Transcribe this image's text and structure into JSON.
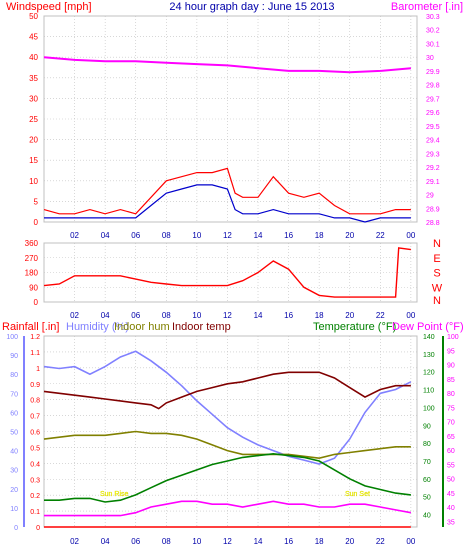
{
  "chart_data": [
    {
      "type": "line",
      "title": "24 hour graph day : June 15 2013",
      "left_axis_label": "Windspeed [mph]",
      "right_axis_label": "Barometer [.in]",
      "x_ticks": [
        "02",
        "04",
        "06",
        "08",
        "10",
        "12",
        "14",
        "16",
        "18",
        "20",
        "22",
        "00"
      ],
      "x_range": [
        0,
        24.4
      ],
      "left_ylim": [
        0,
        50
      ],
      "left_ticks": [
        0,
        5,
        10,
        15,
        20,
        25,
        30,
        35,
        40,
        45,
        50
      ],
      "right_ylim": [
        28.8,
        30.3
      ],
      "right_ticks": [
        "28.8",
        "28.9",
        "29",
        "29.1",
        "29.2",
        "29.3",
        "29.4",
        "29.5",
        "29.6",
        "29.7",
        "29.8",
        "29.9",
        "30",
        "30.1",
        "30.2",
        "30.3"
      ],
      "grid": true,
      "colors": {
        "windspeed": "#ff0000",
        "avg_wind": "#0000cc",
        "barometer": "#ff00ff",
        "grid": "#c0c0c0",
        "frame": "#c0c0c0"
      },
      "series": [
        {
          "axis": "right",
          "color": "#ff00ff",
          "x": [
            0,
            2,
            4,
            6,
            8,
            10,
            12,
            14,
            16,
            18,
            20,
            22,
            24
          ],
          "values": [
            30.0,
            29.98,
            29.97,
            29.97,
            29.96,
            29.95,
            29.94,
            29.92,
            29.9,
            29.9,
            29.89,
            29.9,
            29.92
          ]
        },
        {
          "axis": "left",
          "color": "#ff0000",
          "x": [
            0,
            1,
            2,
            3,
            4,
            5,
            6,
            7,
            8,
            9,
            10,
            11,
            12,
            12.5,
            13,
            14,
            15,
            16,
            17,
            18,
            19,
            20,
            21,
            22,
            23,
            24
          ],
          "values": [
            3,
            2,
            2,
            3,
            2,
            3,
            2,
            6,
            10,
            11,
            12,
            12,
            13,
            7,
            6,
            6,
            11,
            7,
            6,
            7,
            4,
            2,
            2,
            2,
            3,
            3
          ]
        },
        {
          "axis": "left",
          "color": "#0000cc",
          "x": [
            0,
            1,
            2,
            3,
            4,
            5,
            6,
            7,
            8,
            9,
            10,
            11,
            12,
            12.5,
            13,
            14,
            15,
            16,
            17,
            18,
            19,
            20,
            21,
            22,
            23,
            24
          ],
          "values": [
            1,
            1,
            1,
            1,
            1,
            1,
            1,
            4,
            7,
            8,
            9,
            9,
            8,
            3,
            2,
            2,
            3,
            2,
            2,
            2,
            1,
            1,
            0,
            1,
            1,
            1
          ]
        }
      ]
    },
    {
      "type": "line",
      "right_axis_label": "N W S E N",
      "x_ticks": [
        "02",
        "04",
        "06",
        "08",
        "10",
        "12",
        "14",
        "16",
        "18",
        "20",
        "22",
        "00"
      ],
      "x_range": [
        0,
        24.4
      ],
      "ylim": [
        0,
        360
      ],
      "y_ticks": [
        0,
        90,
        180,
        270,
        360
      ],
      "grid": true,
      "series": [
        {
          "color": "#ff0000",
          "x": [
            0,
            1,
            2,
            3,
            4,
            5,
            6,
            7,
            8,
            9,
            10,
            11,
            12,
            13,
            14,
            15,
            16,
            17,
            18,
            19,
            20,
            21,
            22,
            23,
            23.2,
            24
          ],
          "values": [
            100,
            110,
            160,
            160,
            160,
            160,
            140,
            120,
            110,
            100,
            100,
            100,
            100,
            130,
            180,
            250,
            200,
            90,
            40,
            30,
            30,
            30,
            30,
            30,
            330,
            320
          ]
        }
      ]
    },
    {
      "type": "line",
      "legend": [
        {
          "label": "Rainfall [.in]",
          "color": "#ff0000"
        },
        {
          "label": "Humidity (%)",
          "color": "#8080ff"
        },
        {
          "label": "Indoor hum",
          "color": "#808000"
        },
        {
          "label": "Indoor temp",
          "color": "#800000"
        },
        {
          "label": "Temperature (°F)",
          "color": "#008000"
        },
        {
          "label": "Dew Point (°F)",
          "color": "#ff00ff"
        }
      ],
      "annotations": [
        "Sun Rise",
        "Sun Set"
      ],
      "x_ticks": [
        "02",
        "04",
        "06",
        "08",
        "10",
        "12",
        "14",
        "16",
        "18",
        "20",
        "22",
        "00"
      ],
      "x_range": [
        0,
        24.4
      ],
      "rain_ticks": [
        "0",
        "0.1",
        "0.2",
        "0.3",
        "0.4",
        "0.5",
        "0.6",
        "0.7",
        "0.8",
        "0.9",
        "1",
        "1.1",
        "1.2"
      ],
      "humidity_ticks": [
        0,
        10,
        20,
        30,
        40,
        50,
        60,
        70,
        80,
        90,
        100
      ],
      "temp_ticks": [
        40,
        50,
        60,
        70,
        80,
        90,
        100,
        110,
        120,
        130,
        140
      ],
      "dew_ticks": [
        35,
        40,
        45,
        50,
        55,
        60,
        65,
        70,
        75,
        80,
        85,
        90,
        95,
        100
      ],
      "grid": true,
      "series": [
        {
          "name": "Humidity (%)",
          "color": "#8080ff",
          "x": [
            0,
            1,
            2,
            3,
            4,
            5,
            6,
            7,
            8,
            9,
            10,
            11,
            12,
            13,
            14,
            15,
            16,
            17,
            18,
            19,
            20,
            21,
            22,
            23,
            24
          ],
          "values": [
            84,
            83,
            84,
            80,
            84,
            89,
            92,
            87,
            81,
            74,
            66,
            59,
            52,
            47,
            43,
            40,
            37,
            35,
            33,
            36,
            46,
            60,
            70,
            72,
            76
          ]
        },
        {
          "name": "Indoor temp",
          "color": "#800000",
          "x": [
            0,
            1,
            2,
            3,
            4,
            5,
            6,
            7,
            7.5,
            8,
            9,
            10,
            11,
            12,
            13,
            14,
            15,
            16,
            17,
            18,
            19,
            20,
            21,
            22,
            23,
            24
          ],
          "values": [
            71,
            70,
            69,
            68,
            67,
            66,
            65,
            64,
            62,
            65,
            68,
            71,
            73,
            75,
            76,
            78,
            80,
            81,
            81,
            81,
            78,
            73,
            68,
            72,
            74,
            74
          ]
        },
        {
          "name": "Indoor hum",
          "color": "#808000",
          "x": [
            0,
            1,
            2,
            3,
            4,
            5,
            6,
            7,
            8,
            9,
            10,
            11,
            12,
            13,
            14,
            15,
            16,
            17,
            18,
            19,
            20,
            21,
            22,
            23,
            24
          ],
          "values": [
            46,
            47,
            48,
            48,
            48,
            49,
            50,
            49,
            49,
            48,
            46,
            43,
            40,
            38,
            38,
            38,
            38,
            37,
            36,
            38,
            39,
            40,
            41,
            42,
            42
          ]
        },
        {
          "name": "Temperature (°F)",
          "color": "#008000",
          "x": [
            0,
            1,
            2,
            3,
            4,
            5,
            6,
            7,
            8,
            9,
            10,
            11,
            12,
            13,
            14,
            15,
            16,
            17,
            18,
            19,
            20,
            21,
            22,
            23,
            24
          ],
          "values": [
            48,
            48,
            49,
            49,
            47,
            48,
            51,
            55,
            59,
            62,
            65,
            68,
            70,
            72,
            73,
            74,
            73,
            72,
            70,
            65,
            60,
            56,
            54,
            52,
            51
          ]
        },
        {
          "name": "Dew Point (°F)",
          "color": "#ff00ff",
          "x": [
            0,
            1,
            2,
            3,
            4,
            5,
            6,
            7,
            8,
            9,
            10,
            11,
            12,
            13,
            14,
            15,
            16,
            17,
            18,
            19,
            20,
            21,
            22,
            23,
            24
          ],
          "values": [
            37,
            37,
            37,
            37,
            37,
            37,
            38,
            40,
            41,
            42,
            42,
            41,
            41,
            40,
            41,
            42,
            41,
            41,
            40,
            40,
            41,
            41,
            40,
            39,
            38
          ]
        },
        {
          "name": "Rainfall [.in]",
          "color": "#ff0000",
          "x": [
            0,
            24
          ],
          "values": [
            0,
            0
          ]
        }
      ]
    }
  ]
}
